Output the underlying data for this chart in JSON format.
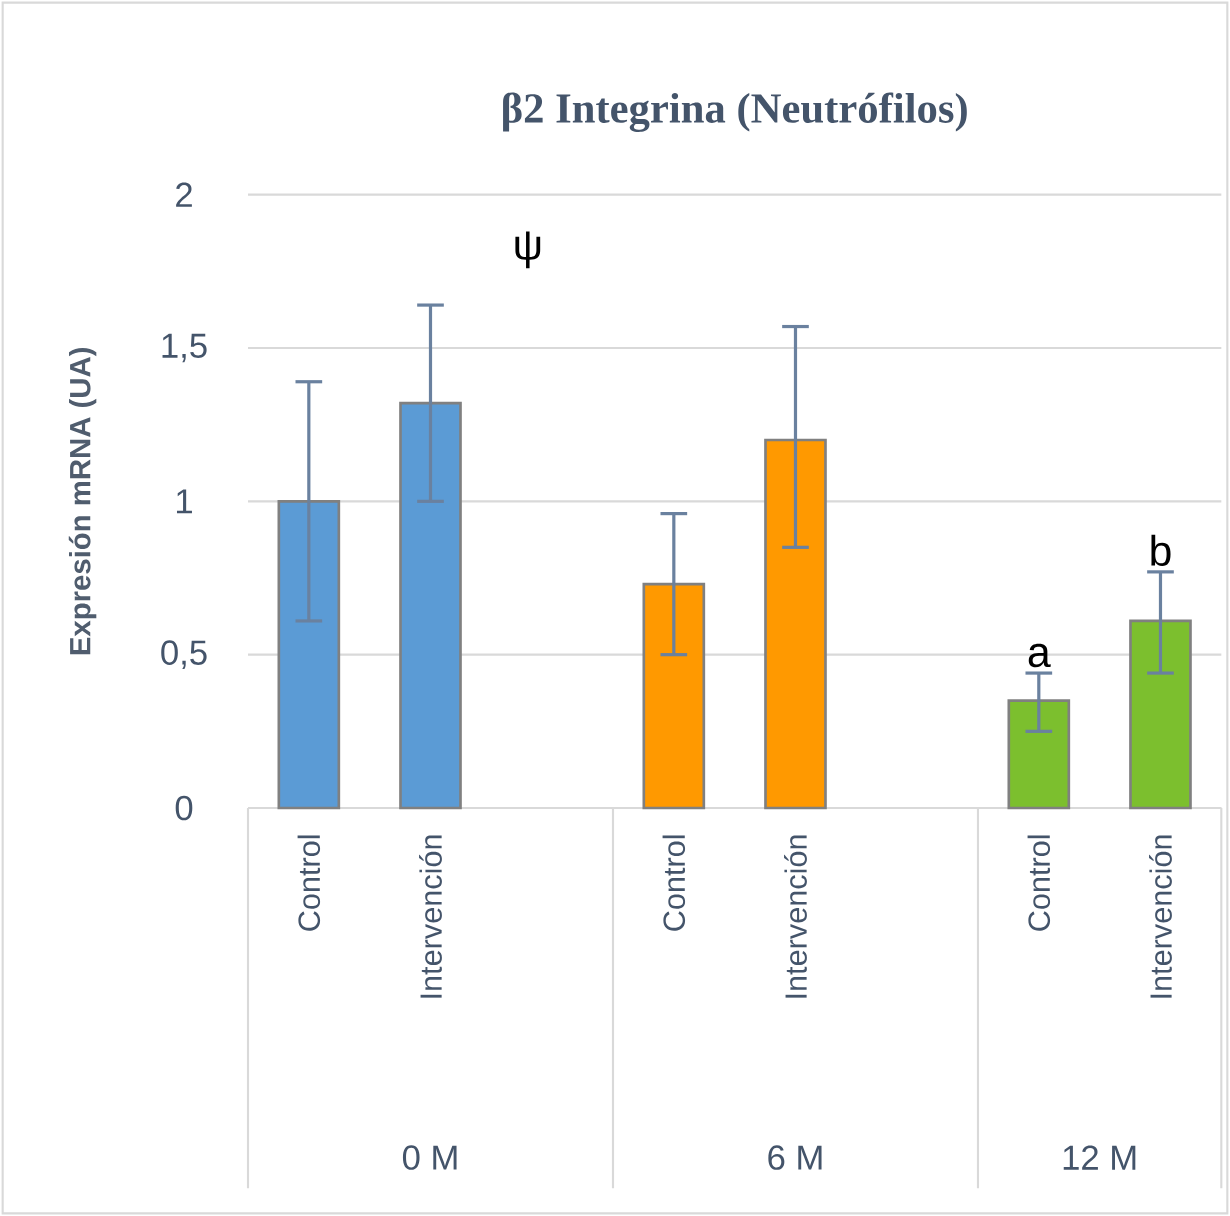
{
  "chart_data": {
    "type": "bar",
    "title": "β2 Integrina (Neutrófilos)",
    "ylabel": "Expresión mRNA (UA)",
    "categories": [
      "Control",
      "Intervención",
      null,
      "Control",
      "Intervención",
      null,
      "Control",
      "Intervención"
    ],
    "values": [
      1.0,
      1.32,
      null,
      0.73,
      1.2,
      null,
      0.35,
      0.61
    ],
    "colors": [
      "#5b9bd5",
      "#5b9bd5",
      null,
      "#ff9900",
      "#ff9900",
      null,
      "#7cbf2e",
      "#7cbf2e"
    ],
    "errors": [
      [
        0.61,
        1.39
      ],
      [
        1.0,
        1.64
      ],
      null,
      [
        0.5,
        0.96
      ],
      [
        0.85,
        1.57
      ],
      null,
      [
        0.25,
        0.44
      ],
      [
        0.44,
        0.77
      ]
    ],
    "value_labels": [
      null,
      null,
      null,
      null,
      null,
      null,
      "a",
      "b"
    ],
    "annotations": [
      "ψ",
      "0 M",
      "6 M",
      "12 M"
    ],
    "ylim": [
      0,
      2
    ],
    "yticks": [
      0,
      {
        "value": 0.5,
        "label": "0,5"
      },
      1,
      {
        "value": 1.5,
        "label": "1,5"
      },
      2
    ],
    "grid": "y"
  }
}
